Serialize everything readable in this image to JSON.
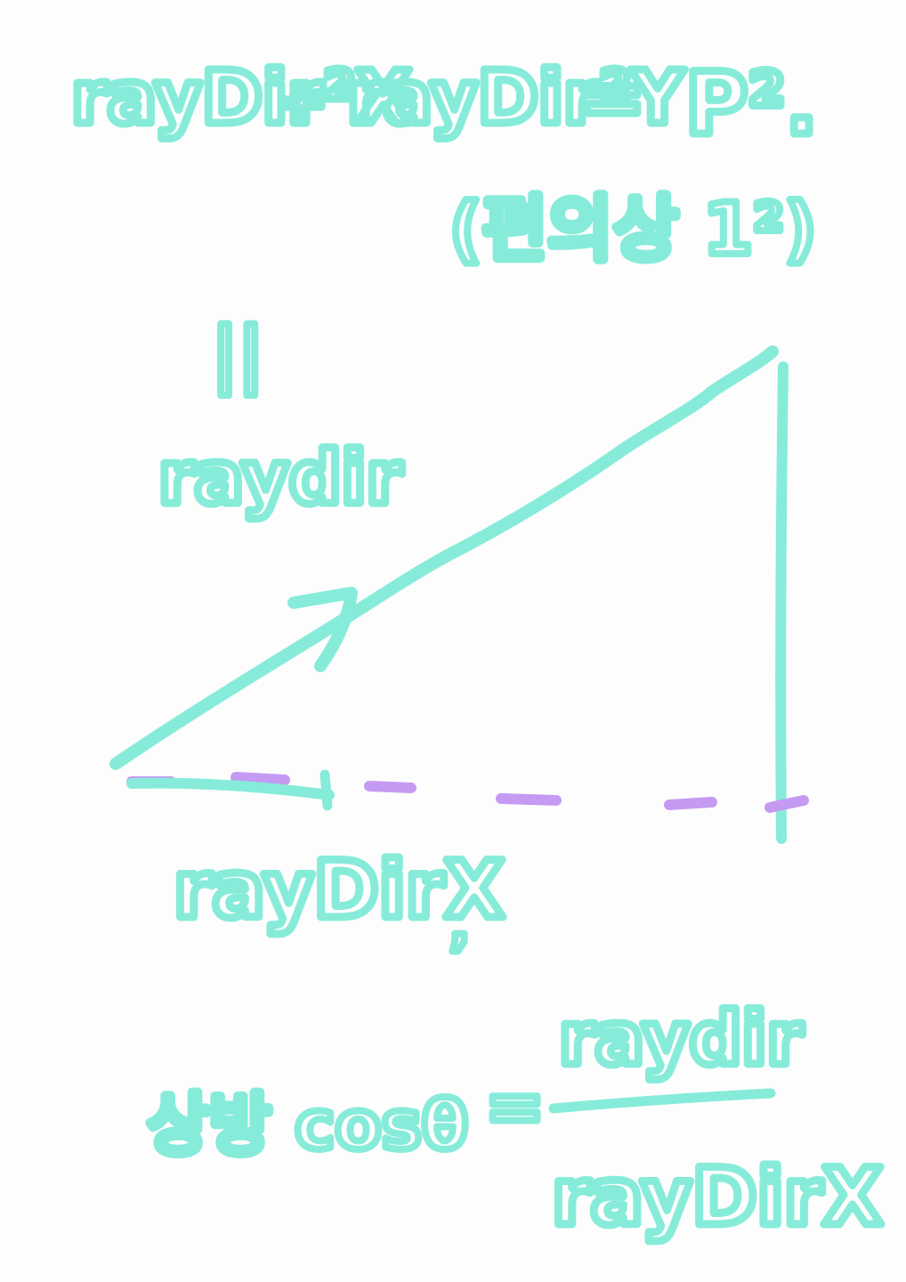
{
  "colors": {
    "background": "#fdfdfd",
    "ink": "#86ecd9",
    "dash": "#c59af2"
  },
  "formula": {
    "lhs_a": "rayDir²X",
    "plus": "+",
    "lhs_b": "rayDir²Y",
    "equals": "=",
    "rhs": "P²."
  },
  "note": "(편의상 1²)",
  "label_eq": "||",
  "label_raydir": "raydir",
  "label_raydirx": "rayDirX",
  "stray_mark": ",",
  "bottom_formula": {
    "lhs": "상방 cosθ",
    "equals": "=",
    "numerator": "raydir",
    "denominator": "rayDirX"
  }
}
